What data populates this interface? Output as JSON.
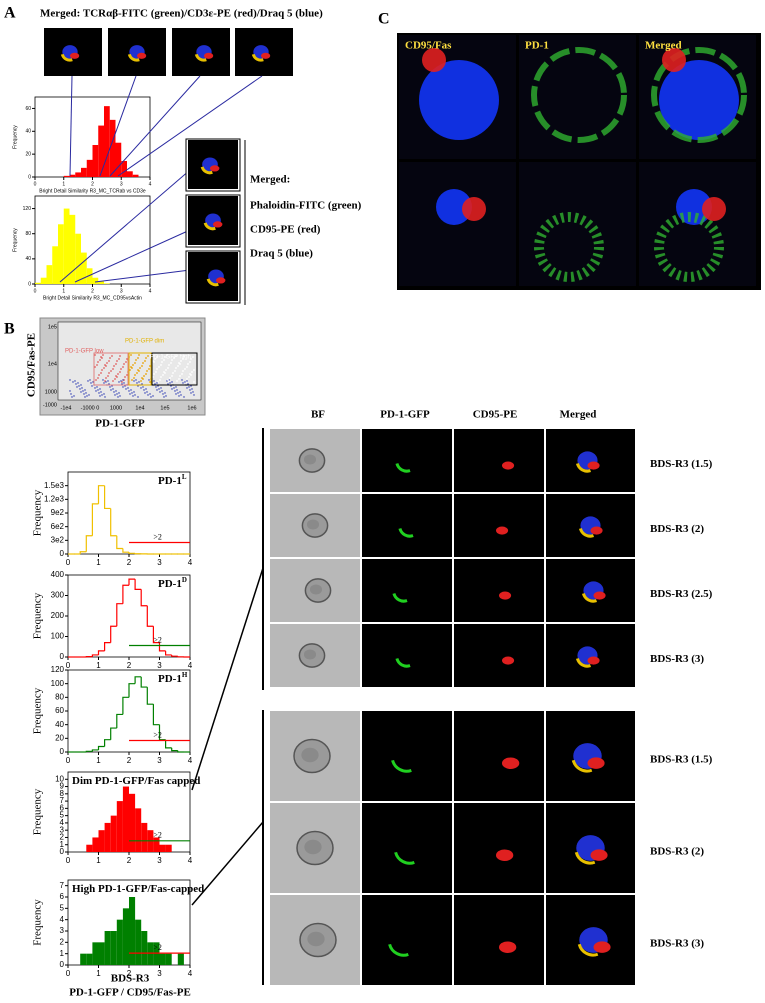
{
  "panel_a": {
    "label": "A",
    "title": "Merged: TCRαβ-FITC (green)/CD3ε-PE (red)/Draq 5 (blue)",
    "histograms": [
      {
        "type": "histogram",
        "style": "bar",
        "color": "#ff0000",
        "ylabel": "Frequency",
        "xlabel": "Bright Detail Similarity R3_MC_TCRab vs CD3e",
        "bins": [
          0,
          0.2,
          0.4,
          0.6,
          0.8,
          1,
          1.2,
          1.4,
          1.6,
          1.8,
          2,
          2.2,
          2.4,
          2.6,
          2.8,
          3,
          3.2,
          3.4,
          3.6,
          3.8,
          4
        ],
        "counts": [
          0,
          0,
          0,
          0,
          0,
          1,
          2,
          4,
          8,
          15,
          28,
          45,
          62,
          50,
          30,
          14,
          5,
          2,
          0,
          0
        ],
        "xlim": [
          0,
          4
        ],
        "ylim": [
          0,
          70
        ],
        "xticks": [
          0,
          1,
          2,
          3,
          4
        ],
        "yticks": [
          0,
          20,
          40,
          60
        ]
      },
      {
        "type": "histogram",
        "style": "bar",
        "color": "#ffff00",
        "ylabel": "Frequency",
        "xlabel": "Bright Detail Similarity R3_MC_CD95vsActin",
        "bins": [
          0,
          0.2,
          0.4,
          0.6,
          0.8,
          1,
          1.2,
          1.4,
          1.6,
          1.8,
          2,
          2.2,
          2.4,
          2.6,
          2.8,
          3,
          3.2,
          3.4,
          3.6,
          3.8,
          4
        ],
        "counts": [
          2,
          10,
          30,
          60,
          95,
          120,
          110,
          80,
          50,
          25,
          10,
          4,
          1,
          0,
          0,
          0,
          0,
          0,
          0,
          0
        ],
        "xlim": [
          0,
          4
        ],
        "ylim": [
          0,
          140
        ],
        "xticks": [
          0,
          1,
          2,
          3,
          4
        ],
        "yticks": [
          0,
          40,
          80,
          120
        ]
      }
    ],
    "legend": {
      "heading": "Merged:",
      "lines": [
        "Phaloidin-FITC (green)",
        "CD95-PE (red)",
        "Draq 5 (blue)"
      ]
    }
  },
  "panel_b": {
    "label": "B",
    "dot_plot": {
      "ylabel": "CD95/Fas-PE",
      "xlabel": "PD-1-GFP",
      "ytick_labels": [
        "1e5",
        "1e4",
        "1000",
        "-1000"
      ],
      "xtick_labels": [
        "-1e4",
        "-1000 0",
        "1000",
        "1e4",
        "1e5",
        "1e6"
      ],
      "gates": [
        "PD-1-GFP low",
        "PD-1-GFP dim",
        "PD-1-GFP high"
      ]
    },
    "histograms": [
      {
        "type": "histogram",
        "style": "step",
        "color": "#f0c000",
        "title": "PD-1",
        "title_sup": "L",
        "ylabel": "Frequency",
        "bins": [
          0,
          0.2,
          0.4,
          0.6,
          0.8,
          1,
          1.2,
          1.4,
          1.6,
          1.8,
          2,
          2.2,
          2.4,
          2.6,
          2.8,
          3,
          3.2,
          3.4,
          3.6,
          3.8,
          4
        ],
        "counts": [
          0,
          0,
          50,
          400,
          1100,
          1500,
          1000,
          400,
          120,
          40,
          15,
          5,
          2,
          0,
          0,
          0,
          0,
          0,
          0,
          0
        ],
        "xlim": [
          0,
          4
        ],
        "ylim": [
          0,
          1800
        ],
        "xticks": [
          0,
          1,
          2,
          3,
          4
        ],
        "yticks": [
          0,
          {
            "value": 300,
            "label": "3e2"
          },
          {
            "value": 600,
            "label": "6e2"
          },
          {
            "value": 900,
            "label": "9e2"
          },
          {
            "value": 1200,
            "label": "1.2e3"
          },
          {
            "value": 1500,
            "label": "1.5e3"
          }
        ],
        "threshold": {
          "value": 2,
          "label": ">2"
        },
        "threshold_color": "#ff0000"
      },
      {
        "type": "histogram",
        "style": "step",
        "color": "#ff0000",
        "title": "PD-1",
        "title_sup": "D",
        "ylabel": "Frequency",
        "bins": [
          0,
          0.2,
          0.4,
          0.6,
          0.8,
          1,
          1.2,
          1.4,
          1.6,
          1.8,
          2,
          2.2,
          2.4,
          2.6,
          2.8,
          3,
          3.2,
          3.4,
          3.6,
          3.8,
          4
        ],
        "counts": [
          0,
          0,
          0,
          2,
          10,
          30,
          70,
          150,
          260,
          350,
          380,
          330,
          250,
          150,
          70,
          30,
          10,
          4,
          1,
          0
        ],
        "xlim": [
          0,
          4
        ],
        "ylim": [
          0,
          400
        ],
        "xticks": [
          0,
          1,
          2,
          3,
          4
        ],
        "yticks": [
          0,
          100,
          200,
          300,
          400
        ],
        "threshold": {
          "value": 2,
          "label": ">2"
        },
        "threshold_color": "#008000"
      },
      {
        "type": "histogram",
        "style": "step",
        "color": "#008000",
        "title": "PD-1",
        "title_sup": "H",
        "ylabel": "Frequency",
        "bins": [
          0,
          0.2,
          0.4,
          0.6,
          0.8,
          1,
          1.2,
          1.4,
          1.6,
          1.8,
          2,
          2.2,
          2.4,
          2.6,
          2.8,
          3,
          3.2,
          3.4,
          3.6,
          3.8,
          4
        ],
        "counts": [
          0,
          0,
          0,
          1,
          3,
          8,
          18,
          35,
          55,
          80,
          100,
          110,
          95,
          70,
          40,
          18,
          6,
          2,
          0,
          0
        ],
        "xlim": [
          0,
          4
        ],
        "ylim": [
          0,
          120
        ],
        "xticks": [
          0,
          1,
          2,
          3,
          4
        ],
        "yticks": [
          0,
          20,
          40,
          60,
          80,
          100,
          120
        ],
        "threshold": {
          "value": 2,
          "label": ">2"
        },
        "threshold_color": "#ff0000"
      },
      {
        "type": "histogram",
        "style": "bar",
        "color": "#ff0000",
        "title": "Dim PD-1-GFP/Fas capped",
        "ylabel": "Frequency",
        "bins": [
          0,
          0.2,
          0.4,
          0.6,
          0.8,
          1,
          1.2,
          1.4,
          1.6,
          1.8,
          2,
          2.2,
          2.4,
          2.6,
          2.8,
          3,
          3.2,
          3.4,
          3.6,
          3.8,
          4
        ],
        "counts": [
          0,
          0,
          0,
          1,
          2,
          3,
          4,
          5,
          7,
          9,
          8,
          6,
          4,
          3,
          2,
          1,
          1,
          0,
          0,
          0
        ],
        "xlim": [
          0,
          4
        ],
        "ylim": [
          0,
          11
        ],
        "xticks": [
          0,
          1,
          2,
          3,
          4
        ],
        "yticks": [
          0,
          1,
          2,
          3,
          4,
          5,
          6,
          7,
          8,
          9,
          10
        ],
        "threshold": {
          "value": 2,
          "label": ">2"
        },
        "threshold_color": "#008000"
      },
      {
        "type": "histogram",
        "style": "bar",
        "color": "#008000",
        "title": "High PD-1-GFP/Fas-capped",
        "ylabel": "Frequency",
        "bins": [
          0,
          0.2,
          0.4,
          0.6,
          0.8,
          1,
          1.2,
          1.4,
          1.6,
          1.8,
          2,
          2.2,
          2.4,
          2.6,
          2.8,
          3,
          3.2,
          3.4,
          3.6,
          3.8,
          4
        ],
        "counts": [
          0,
          0,
          1,
          1,
          2,
          2,
          3,
          3,
          4,
          5,
          6,
          4,
          3,
          2,
          2,
          1,
          1,
          0,
          1,
          0
        ],
        "xlim": [
          0,
          4
        ],
        "ylim": [
          0,
          7.5
        ],
        "xticks": [
          0,
          1,
          2,
          3,
          4
        ],
        "yticks": [
          0,
          1,
          2,
          3,
          4,
          5,
          6,
          7
        ],
        "threshold": {
          "value": 2,
          "label": ">2"
        },
        "threshold_color": "#ff0000"
      }
    ],
    "xlabel": "BDS-R3",
    "xlabel2": "PD-1-GFP / CD95/Fas-PE",
    "image_columns": [
      "BF",
      "PD-1-GFP",
      "CD95-PE",
      "Merged"
    ],
    "groups": [
      {
        "rows": [
          "BDS-R3 (1.5)",
          "BDS-R3 (2)",
          "BDS-R3 (2.5)",
          "BDS-R3 (3)"
        ]
      },
      {
        "rows": [
          "BDS-R3 (1.5)",
          "BDS-R3 (2)",
          "BDS-R3 (3)"
        ]
      }
    ]
  },
  "panel_c": {
    "label": "C",
    "columns": [
      "CD95/Fas",
      "PD-1",
      "Merged"
    ]
  }
}
